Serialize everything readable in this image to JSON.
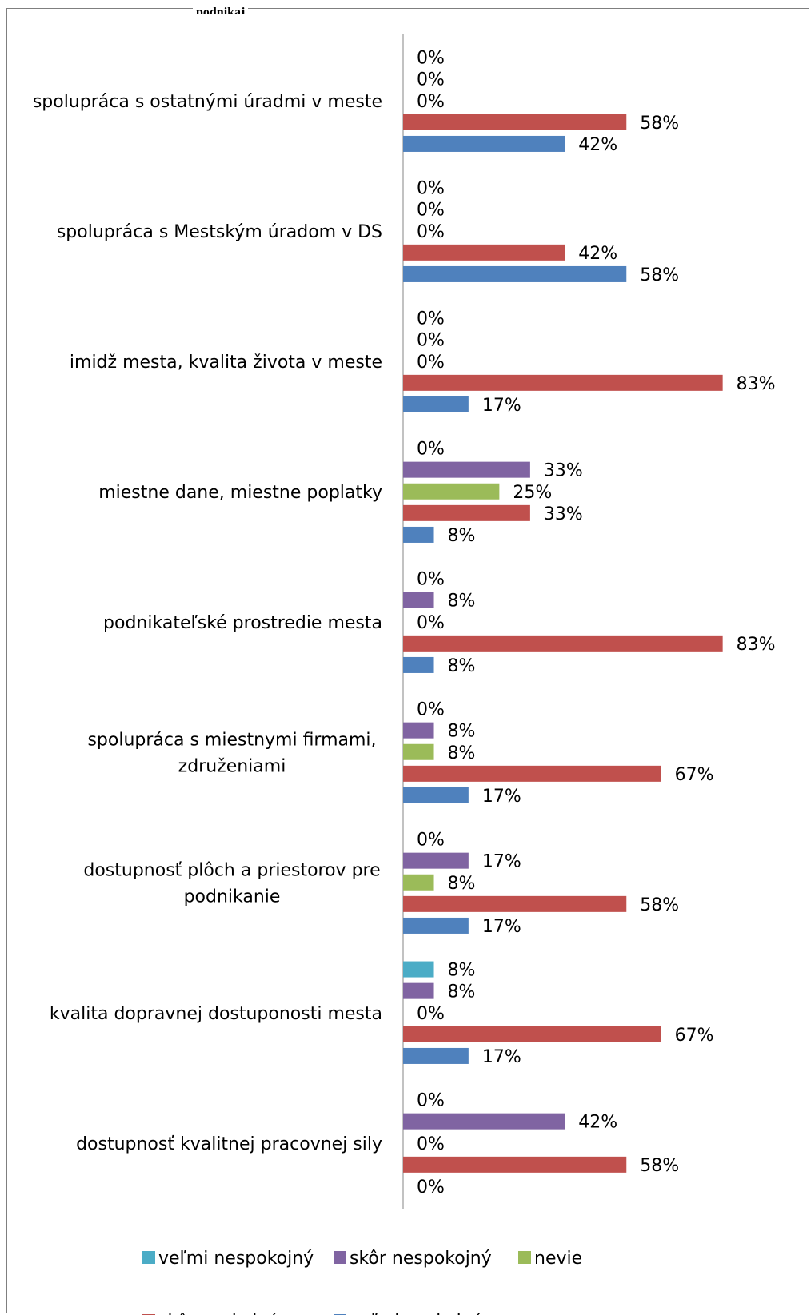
{
  "header_fragment": "podnikaj",
  "chart_data": {
    "type": "bar",
    "orientation": "horizontal",
    "title": "",
    "xlabel": "",
    "ylabel": "",
    "xlim": [
      0,
      100
    ],
    "value_suffix": "%",
    "categories": [
      "spolupráca s ostatnými úradmi v meste",
      "spolupráca s Mestským úradom v DS",
      "imidž mesta, kvalita života v meste",
      "miestne dane, miestne poplatky",
      "podnikateľské prostredie mesta",
      "spolupráca s miestnymi firmami, združeniami",
      "dostupnosť plôch a priestorov pre podnikanie",
      "kvalita dopravnej dostuponosti mesta",
      "dostupnosť kvalitnej pracovnej sily"
    ],
    "category_lines": [
      [
        "spolupráca s ostatnými úradmi v meste"
      ],
      [
        "spolupráca s Mestským úradom v DS"
      ],
      [
        "imidž mesta, kvalita života v meste"
      ],
      [
        "miestne dane, miestne poplatky"
      ],
      [
        "podnikateľské prostredie mesta"
      ],
      [
        "spolupráca s miestnymi firmami,",
        "združeniami"
      ],
      [
        "dostupnosť plôch a priestorov pre",
        "podnikanie"
      ],
      [
        "kvalita dopravnej dostuponosti mesta"
      ],
      [
        "dostupnosť kvalitnej pracovnej sily"
      ]
    ],
    "series": [
      {
        "name": "veľmi nespokojný",
        "color": "#4bacc6",
        "values": [
          0,
          0,
          0,
          0,
          0,
          0,
          0,
          8,
          0
        ]
      },
      {
        "name": "skôr nespokojný",
        "color": "#8064a2",
        "values": [
          0,
          0,
          0,
          33,
          8,
          8,
          17,
          8,
          42
        ]
      },
      {
        "name": "nevie",
        "color": "#9bbb59",
        "values": [
          0,
          0,
          0,
          25,
          0,
          8,
          8,
          0,
          0
        ]
      },
      {
        "name": "skôr spokojný",
        "color": "#c0504d",
        "values": [
          58,
          42,
          83,
          33,
          83,
          67,
          58,
          67,
          58
        ]
      },
      {
        "name": "veľmi spokojný",
        "color": "#4f81bd",
        "values": [
          42,
          58,
          17,
          8,
          8,
          17,
          17,
          17,
          0
        ]
      }
    ],
    "legend_position": "bottom",
    "grid": false
  }
}
